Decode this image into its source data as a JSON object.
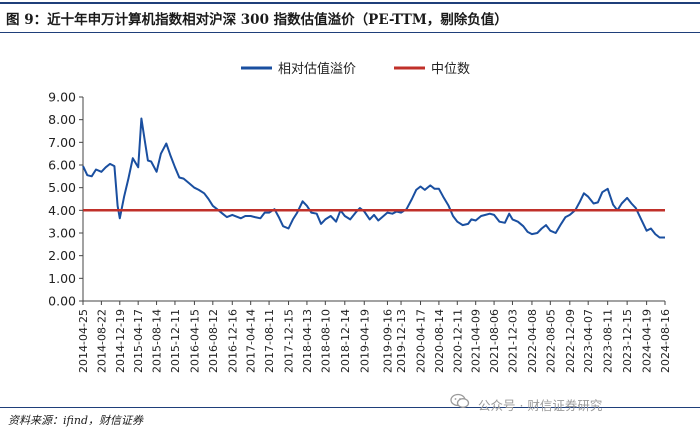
{
  "figure": {
    "title": "图 9：近十年申万计算机指数相对沪深 300 指数估值溢价（PE-TTM，剔除负值）",
    "source": "资料来源：ifind，财信证券",
    "watermark": "公众号 · 财信证券研究"
  },
  "colors": {
    "series_line": "#1a4fa0",
    "median_line": "#c0302a",
    "frame": "#1f3f7a"
  },
  "chart_data": {
    "type": "line",
    "title": "",
    "xlabel": "",
    "ylabel": "",
    "ylim": [
      0,
      9
    ],
    "y_ticks": [
      "9.00",
      "8.00",
      "7.00",
      "6.00",
      "5.00",
      "4.00",
      "3.00",
      "2.00",
      "1.00",
      "0.00"
    ],
    "x_ticks": [
      "2014-04-25",
      "2014-08-22",
      "2014-12-19",
      "2015-04-17",
      "2015-08-14",
      "2015-12-11",
      "2016-04-15",
      "2016-08-12",
      "2016-12-16",
      "2017-04-14",
      "2017-08-11",
      "2017-12-15",
      "2018-04-13",
      "2018-08-10",
      "2018-12-14",
      "2019-04-19",
      "2019-09-16",
      "2019-12-13",
      "2020-04-17",
      "2020-08-14",
      "2020-12-11",
      "2021-04-09",
      "2021-08-06",
      "2021-12-03",
      "2022-04-08",
      "2022-08-05",
      "2022-12-09",
      "2023-04-07",
      "2023-08-11",
      "2023-12-15",
      "2024-04-19",
      "2024-08-16"
    ],
    "grid": false,
    "legend_position": "top-center",
    "series": [
      {
        "name": "相对估值溢价",
        "x": [
          "2014-04-25",
          "2014-05-23",
          "2014-06-20",
          "2014-07-18",
          "2014-08-22",
          "2014-09-19",
          "2014-10-17",
          "2014-11-14",
          "2014-12-05",
          "2014-12-19",
          "2015-01-16",
          "2015-02-13",
          "2015-03-13",
          "2015-04-17",
          "2015-05-08",
          "2015-05-29",
          "2015-06-19",
          "2015-07-10",
          "2015-08-14",
          "2015-09-11",
          "2015-10-16",
          "2015-11-13",
          "2015-12-11",
          "2016-01-08",
          "2016-02-05",
          "2016-03-11",
          "2016-04-15",
          "2016-05-13",
          "2016-06-17",
          "2016-07-15",
          "2016-08-12",
          "2016-09-09",
          "2016-10-14",
          "2016-11-11",
          "2016-12-16",
          "2017-02-10",
          "2017-03-10",
          "2017-04-14",
          "2017-05-12",
          "2017-06-16",
          "2017-07-14",
          "2017-08-11",
          "2017-09-15",
          "2017-10-13",
          "2017-11-10",
          "2017-12-15",
          "2018-01-12",
          "2018-02-09",
          "2018-03-16",
          "2018-04-13",
          "2018-05-11",
          "2018-06-15",
          "2018-07-13",
          "2018-08-10",
          "2018-09-14",
          "2018-10-19",
          "2018-11-16",
          "2018-12-14",
          "2019-01-18",
          "2019-02-22",
          "2019-03-22",
          "2019-04-19",
          "2019-05-24",
          "2019-06-21",
          "2019-07-19",
          "2019-09-16",
          "2019-10-18",
          "2019-11-15",
          "2019-12-13",
          "2020-01-17",
          "2020-02-21",
          "2020-03-20",
          "2020-04-17",
          "2020-05-15",
          "2020-06-19",
          "2020-07-17",
          "2020-08-14",
          "2020-09-11",
          "2020-10-16",
          "2020-11-13",
          "2020-12-11",
          "2021-01-15",
          "2021-02-19",
          "2021-03-12",
          "2021-04-09",
          "2021-05-14",
          "2021-06-11",
          "2021-07-09",
          "2021-08-06",
          "2021-09-10",
          "2021-10-15",
          "2021-11-12",
          "2021-12-03",
          "2022-01-07",
          "2022-02-11",
          "2022-03-11",
          "2022-04-08",
          "2022-05-13",
          "2022-06-10",
          "2022-07-08",
          "2022-08-05",
          "2022-09-09",
          "2022-10-14",
          "2022-11-11",
          "2022-12-09",
          "2023-01-13",
          "2023-02-10",
          "2023-03-10",
          "2023-04-07",
          "2023-05-12",
          "2023-06-09",
          "2023-07-07",
          "2023-08-11",
          "2023-09-15",
          "2023-10-13",
          "2023-11-10",
          "2023-12-15",
          "2024-01-12",
          "2024-02-09",
          "2024-03-15",
          "2024-04-19",
          "2024-05-17",
          "2024-06-14",
          "2024-07-12",
          "2024-08-16"
        ],
        "values": [
          5.95,
          5.55,
          5.5,
          5.8,
          5.7,
          5.9,
          6.05,
          5.95,
          4.2,
          3.65,
          4.6,
          5.4,
          6.3,
          5.9,
          8.05,
          7.1,
          6.2,
          6.15,
          5.7,
          6.5,
          6.95,
          6.4,
          5.9,
          5.45,
          5.4,
          5.2,
          5.0,
          4.9,
          4.75,
          4.5,
          4.2,
          4.05,
          3.85,
          3.7,
          3.8,
          3.65,
          3.75,
          3.75,
          3.7,
          3.65,
          3.9,
          3.9,
          4.05,
          3.7,
          3.3,
          3.2,
          3.6,
          3.9,
          4.4,
          4.2,
          3.9,
          3.85,
          3.4,
          3.6,
          3.75,
          3.5,
          4.0,
          3.75,
          3.6,
          3.9,
          4.1,
          3.95,
          3.6,
          3.8,
          3.55,
          3.9,
          3.85,
          3.95,
          3.9,
          4.05,
          4.5,
          4.9,
          5.05,
          4.9,
          5.1,
          4.95,
          4.95,
          4.6,
          4.2,
          3.75,
          3.5,
          3.35,
          3.4,
          3.6,
          3.55,
          3.75,
          3.8,
          3.85,
          3.8,
          3.5,
          3.45,
          3.85,
          3.6,
          3.5,
          3.3,
          3.05,
          2.95,
          3.0,
          3.2,
          3.35,
          3.1,
          3.0,
          3.4,
          3.7,
          3.8,
          4.0,
          4.35,
          4.75,
          4.6,
          4.3,
          4.35,
          4.8,
          4.95,
          4.25,
          4.0,
          4.3,
          4.55,
          4.3,
          4.1,
          3.6,
          3.1,
          3.2,
          2.95,
          2.8,
          2.8
        ]
      },
      {
        "name": "中位数",
        "x": [
          "2014-04-25",
          "2024-08-16"
        ],
        "values": [
          4.0,
          4.0
        ]
      }
    ]
  }
}
